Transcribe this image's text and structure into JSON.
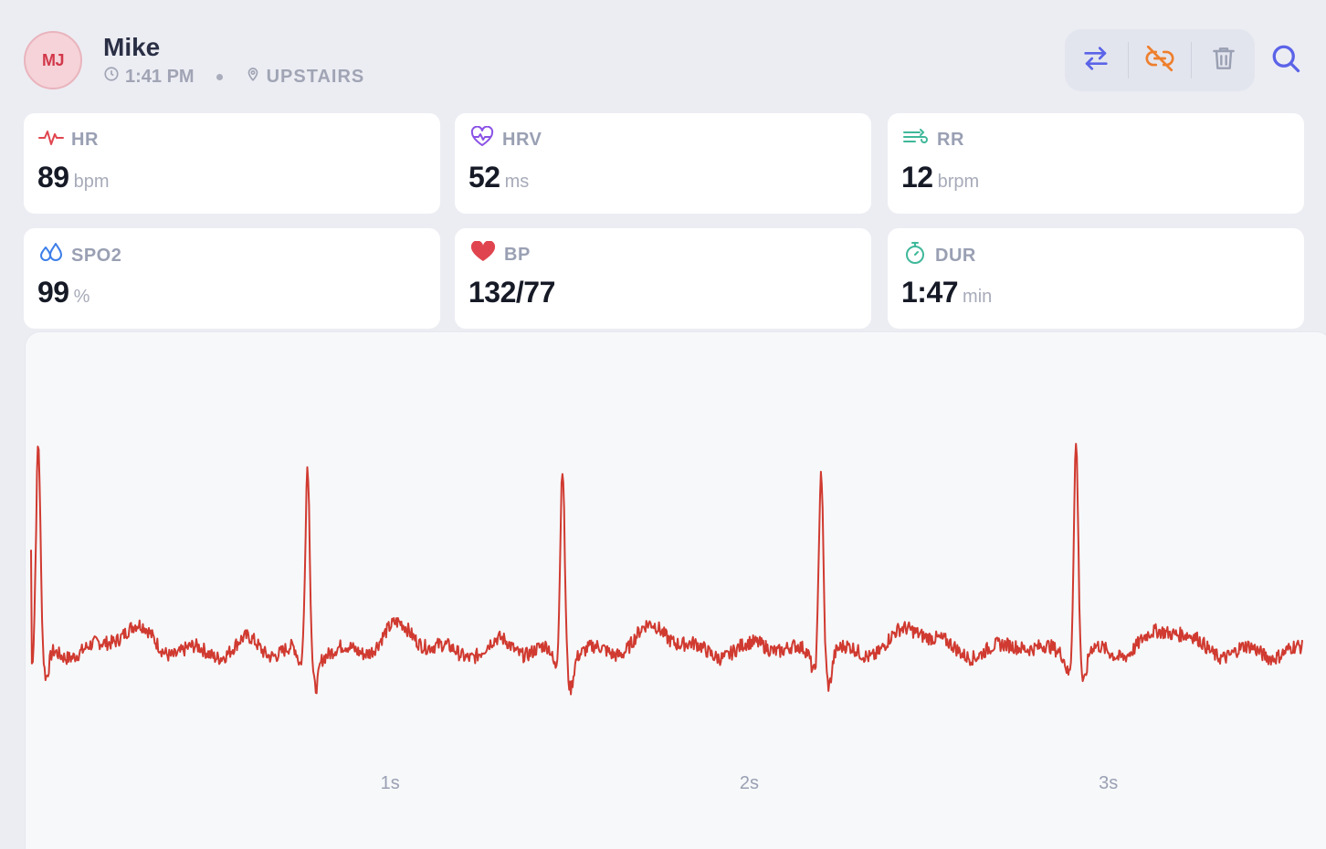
{
  "patient": {
    "initials": "MJ",
    "name": "Mike",
    "time": "1:41 PM",
    "location": "UPSTAIRS"
  },
  "toolbar": {
    "buttons": [
      {
        "name": "swap-icon",
        "color": "#5b63e8"
      },
      {
        "name": "unlink-icon",
        "color": "#ee7f2d"
      },
      {
        "name": "trash-icon",
        "color": "#9aa0b3"
      }
    ],
    "search_icon": "search-icon",
    "search_color": "#5b63e8"
  },
  "vitals": [
    {
      "label": "HR",
      "value": "89",
      "unit": "bpm",
      "icon": "pulse-icon",
      "color": "#e0454f"
    },
    {
      "label": "HRV",
      "value": "52",
      "unit": "ms",
      "icon": "heart-pulse-icon",
      "color": "#8a52e6"
    },
    {
      "label": "RR",
      "value": "12",
      "unit": "brpm",
      "icon": "wind-icon",
      "color": "#3fb89a"
    },
    {
      "label": "SPO2",
      "value": "99",
      "unit": "%",
      "icon": "drops-icon",
      "color": "#3d7ee8"
    },
    {
      "label": "BP",
      "value": "132/77",
      "unit": "",
      "icon": "heart-icon",
      "color": "#e0454f"
    },
    {
      "label": "DUR",
      "value": "1:47",
      "unit": "min",
      "icon": "stopwatch-icon",
      "color": "#3fb89a"
    }
  ],
  "chart_data": {
    "type": "line",
    "title": "",
    "xlabel": "",
    "ylabel": "",
    "x_unit": "s",
    "x_ticks": [
      "1s",
      "2s",
      "3s"
    ],
    "x_tick_values": [
      1,
      2,
      3
    ],
    "xlim": [
      0,
      3.54
    ],
    "ylim": [
      -0.4,
      1.25
    ],
    "grid": false,
    "series": [
      {
        "color": "#d03a30",
        "r_peak_times_s": [
          0.02,
          0.77,
          1.48,
          2.2,
          2.91
        ],
        "r_peak_amplitudes": [
          1.0,
          0.92,
          0.93,
          0.92,
          1.05
        ],
        "baseline": 0.0,
        "s_trough": -0.15,
        "t_wave_amplitude": 0.12
      }
    ]
  }
}
